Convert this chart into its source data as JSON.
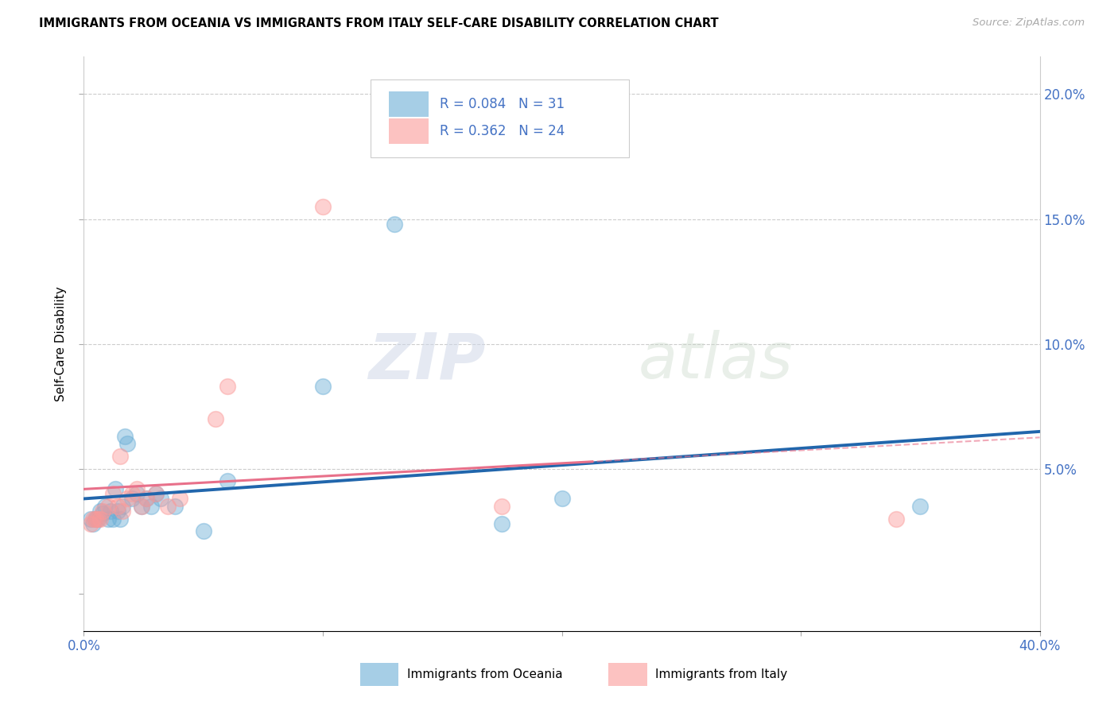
{
  "title": "IMMIGRANTS FROM OCEANIA VS IMMIGRANTS FROM ITALY SELF-CARE DISABILITY CORRELATION CHART",
  "source": "Source: ZipAtlas.com",
  "ylabel": "Self-Care Disability",
  "xlim": [
    0.0,
    0.4
  ],
  "ylim": [
    -0.015,
    0.215
  ],
  "yticks": [
    0.0,
    0.05,
    0.1,
    0.15,
    0.2
  ],
  "ytick_labels_right": [
    "",
    "5.0%",
    "10.0%",
    "15.0%",
    "20.0%"
  ],
  "xticks": [
    0.0,
    0.1,
    0.2,
    0.3,
    0.4
  ],
  "xtick_labels": [
    "0.0%",
    "",
    "",
    "",
    "40.0%"
  ],
  "color_oceania": "#6baed6",
  "color_italy": "#fb9a99",
  "color_line_oceania": "#2166ac",
  "color_line_italy": "#e8708a",
  "watermark_zip": "ZIP",
  "watermark_atlas": "atlas",
  "oceania_x": [
    0.003,
    0.004,
    0.005,
    0.006,
    0.007,
    0.008,
    0.009,
    0.01,
    0.011,
    0.012,
    0.013,
    0.014,
    0.015,
    0.016,
    0.017,
    0.018,
    0.02,
    0.022,
    0.024,
    0.026,
    0.028,
    0.03,
    0.032,
    0.038,
    0.05,
    0.06,
    0.1,
    0.13,
    0.175,
    0.2,
    0.35
  ],
  "oceania_y": [
    0.03,
    0.028,
    0.03,
    0.03,
    0.033,
    0.032,
    0.035,
    0.03,
    0.033,
    0.03,
    0.042,
    0.033,
    0.03,
    0.035,
    0.063,
    0.06,
    0.038,
    0.04,
    0.035,
    0.038,
    0.035,
    0.04,
    0.038,
    0.035,
    0.025,
    0.045,
    0.083,
    0.148,
    0.028,
    0.038,
    0.035
  ],
  "italy_x": [
    0.003,
    0.004,
    0.005,
    0.006,
    0.007,
    0.008,
    0.01,
    0.012,
    0.014,
    0.015,
    0.016,
    0.018,
    0.02,
    0.022,
    0.024,
    0.026,
    0.03,
    0.035,
    0.04,
    0.055,
    0.06,
    0.1,
    0.175,
    0.34
  ],
  "italy_y": [
    0.028,
    0.03,
    0.03,
    0.03,
    0.03,
    0.033,
    0.035,
    0.04,
    0.035,
    0.055,
    0.033,
    0.038,
    0.04,
    0.042,
    0.035,
    0.038,
    0.04,
    0.035,
    0.038,
    0.07,
    0.083,
    0.155,
    0.035,
    0.03
  ]
}
